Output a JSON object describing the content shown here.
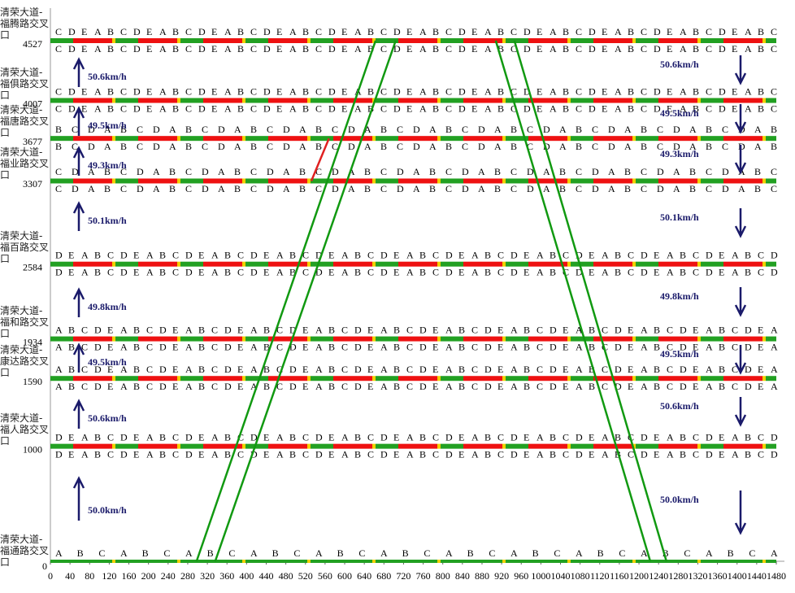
{
  "chart_data": {
    "type": "time-space",
    "xlim": [
      0,
      1480
    ],
    "xticks": [
      0,
      40,
      80,
      120,
      160,
      200,
      240,
      280,
      320,
      360,
      400,
      440,
      480,
      520,
      560,
      600,
      640,
      680,
      720,
      760,
      800,
      840,
      880,
      920,
      960,
      1000,
      1040,
      1080,
      1120,
      1160,
      1200,
      1240,
      1280,
      1320,
      1360,
      1400,
      1440,
      1480
    ],
    "ylim": [
      0,
      4527
    ],
    "intersections": [
      {
        "name": "清荣大道-福腾路交叉口",
        "distance": 4527,
        "phases": [
          "C",
          "D",
          "E",
          "A",
          "B"
        ]
      },
      {
        "name": "清荣大道-福俱路交叉口",
        "distance": 4007,
        "phases": [
          "C",
          "D",
          "E",
          "A",
          "B"
        ]
      },
      {
        "name": "清荣大道-福唐路交叉口",
        "distance": 3677,
        "phases": [
          "B",
          "C",
          "D",
          "A"
        ]
      },
      {
        "name": "清荣大道-福业路交叉口",
        "distance": 3307,
        "phases": [
          "C",
          "D",
          "A",
          "B"
        ]
      },
      {
        "name": "清荣大道-福百路交叉口",
        "distance": 2584,
        "phases": [
          "D",
          "E",
          "A",
          "B",
          "C"
        ]
      },
      {
        "name": "清荣大道-福和路交叉口",
        "distance": 1934,
        "phases": [
          "A",
          "B",
          "C",
          "D",
          "E"
        ]
      },
      {
        "name": "清荣大道-康达路交叉口",
        "distance": 1590,
        "phases": [
          "A",
          "B",
          "C",
          "D",
          "E"
        ]
      },
      {
        "name": "清荣大道-福人路交叉口",
        "distance": 1000,
        "phases": [
          "D",
          "E",
          "A",
          "B",
          "C"
        ]
      },
      {
        "name": "清荣大道-福通路交叉口",
        "distance": 0,
        "phases": [
          "A",
          "B",
          "C"
        ]
      }
    ],
    "up_speeds": [
      "50.6km/h",
      "49.5km/h",
      "49.3km/h",
      "50.1km/h",
      "49.8km/h",
      "49.5km/h",
      "50.6km/h",
      "50.0km/h"
    ],
    "down_speeds": [
      "50.6km/h",
      "49.5km/h",
      "49.3km/h",
      "50.1km/h",
      "49.8km/h",
      "49.5km/h",
      "50.6km/h",
      "50.0km/h"
    ],
    "bands": [
      {
        "color": "#119911",
        "x": [
          298,
          663
        ],
        "y": [
          0,
          4527
        ]
      },
      {
        "color": "#119911",
        "x": [
          336,
          704
        ],
        "y": [
          0,
          4527
        ]
      },
      {
        "color": "#119911",
        "x": [
          908,
          1223
        ],
        "y": [
          4527,
          0
        ]
      },
      {
        "color": "#119911",
        "x": [
          946,
          1256
        ],
        "y": [
          4527,
          0
        ]
      },
      {
        "color": "#e02020",
        "x": [
          532,
          568
        ],
        "y": [
          3307,
          3677
        ]
      }
    ]
  }
}
